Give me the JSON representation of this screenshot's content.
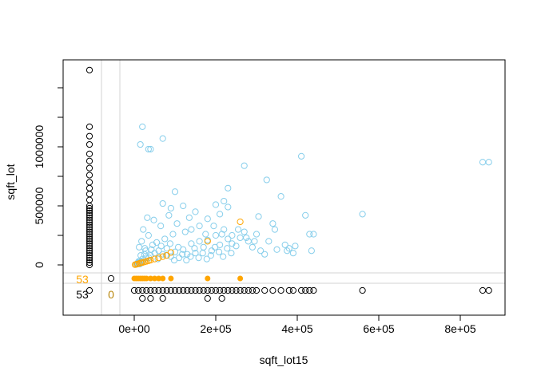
{
  "chart_data": {
    "type": "scatter",
    "title": "",
    "xlabel": "sqft_lot15",
    "ylabel": "sqft_lot",
    "xlim": [
      -220000,
      900000
    ],
    "ylim": [
      -250000,
      1750000
    ],
    "x_ticks": [
      0,
      200000,
      400000,
      600000,
      800000
    ],
    "x_tick_labels": [
      "0e+00",
      "2e+05",
      "4e+05",
      "6e+05",
      "8e+05"
    ],
    "y_ticks": [
      0,
      500000,
      1000000
    ],
    "y_tick_labels": [
      "0",
      "500000",
      "1000000"
    ],
    "grid": false,
    "missing_counts": {
      "x_missing_label": "53",
      "y_missing_label": "53",
      "both_missing_label": "0"
    },
    "colors": {
      "observed": "#87CEEB",
      "imputed": "#FFA500",
      "missing_margin": "#000000",
      "box_missing_count": "#B8860B"
    },
    "series": [
      {
        "role": "observed",
        "points": [
          [
            10000,
            20000
          ],
          [
            15000,
            35000
          ],
          [
            20000,
            50000
          ],
          [
            8000,
            15000
          ],
          [
            30000,
            60000
          ],
          [
            25000,
            90000
          ],
          [
            40000,
            80000
          ],
          [
            50000,
            100000
          ],
          [
            12000,
            150000
          ],
          [
            18000,
            200000
          ],
          [
            35000,
            250000
          ],
          [
            60000,
            120000
          ],
          [
            70000,
            90000
          ],
          [
            80000,
            140000
          ],
          [
            90000,
            70000
          ],
          [
            100000,
            110000
          ],
          [
            110000,
            60000
          ],
          [
            120000,
            130000
          ],
          [
            130000,
            90000
          ],
          [
            140000,
            180000
          ],
          [
            150000,
            100000
          ],
          [
            160000,
            200000
          ],
          [
            170000,
            150000
          ],
          [
            180000,
            210000
          ],
          [
            190000,
            120000
          ],
          [
            200000,
            250000
          ],
          [
            210000,
            170000
          ],
          [
            220000,
            300000
          ],
          [
            230000,
            220000
          ],
          [
            240000,
            180000
          ],
          [
            250000,
            160000
          ],
          [
            260000,
            230000
          ],
          [
            270000,
            280000
          ],
          [
            280000,
            200000
          ],
          [
            290000,
            150000
          ],
          [
            300000,
            260000
          ],
          [
            310000,
            120000
          ],
          [
            320000,
            90000
          ],
          [
            330000,
            200000
          ],
          [
            340000,
            350000
          ],
          [
            350000,
            130000
          ],
          [
            360000,
            580000
          ],
          [
            370000,
            170000
          ],
          [
            380000,
            140000
          ],
          [
            390000,
            100000
          ],
          [
            410000,
            920000
          ],
          [
            420000,
            420000
          ],
          [
            430000,
            260000
          ],
          [
            435000,
            120000
          ],
          [
            560000,
            430000
          ],
          [
            855000,
            870000
          ],
          [
            870000,
            870000
          ],
          [
            20000,
            1170000
          ],
          [
            15000,
            1020000
          ],
          [
            35000,
            980000
          ],
          [
            40000,
            980000
          ],
          [
            70000,
            1070000
          ],
          [
            100000,
            620000
          ],
          [
            70000,
            520000
          ],
          [
            90000,
            480000
          ],
          [
            120000,
            500000
          ],
          [
            150000,
            450000
          ],
          [
            200000,
            510000
          ],
          [
            220000,
            540000
          ],
          [
            230000,
            650000
          ],
          [
            270000,
            840000
          ],
          [
            325000,
            720000
          ],
          [
            230000,
            490000
          ],
          [
            210000,
            430000
          ],
          [
            180000,
            390000
          ],
          [
            160000,
            330000
          ],
          [
            140000,
            300000
          ],
          [
            125000,
            280000
          ],
          [
            95000,
            260000
          ],
          [
            75000,
            220000
          ],
          [
            55000,
            190000
          ],
          [
            45000,
            170000
          ],
          [
            28000,
            120000
          ],
          [
            22000,
            300000
          ],
          [
            32000,
            400000
          ],
          [
            48000,
            380000
          ],
          [
            85000,
            420000
          ],
          [
            65000,
            330000
          ],
          [
            105000,
            350000
          ],
          [
            135000,
            400000
          ],
          [
            175000,
            260000
          ],
          [
            195000,
            330000
          ],
          [
            215000,
            260000
          ],
          [
            240000,
            250000
          ],
          [
            255000,
            300000
          ],
          [
            275000,
            230000
          ],
          [
            295000,
            200000
          ],
          [
            305000,
            410000
          ],
          [
            345000,
            300000
          ],
          [
            375000,
            120000
          ],
          [
            395000,
            160000
          ],
          [
            440000,
            260000
          ],
          [
            16000,
            80000
          ],
          [
            26000,
            140000
          ],
          [
            36000,
            60000
          ],
          [
            42000,
            130000
          ],
          [
            58000,
            50000
          ],
          [
            66000,
            160000
          ],
          [
            78000,
            80000
          ],
          [
            88000,
            180000
          ],
          [
            98000,
            40000
          ],
          [
            108000,
            150000
          ],
          [
            118000,
            90000
          ],
          [
            128000,
            40000
          ],
          [
            138000,
            70000
          ],
          [
            148000,
            140000
          ],
          [
            158000,
            60000
          ],
          [
            168000,
            100000
          ],
          [
            178000,
            50000
          ],
          [
            188000,
            80000
          ],
          [
            198000,
            150000
          ],
          [
            208000,
            110000
          ],
          [
            218000,
            70000
          ],
          [
            228000,
            140000
          ],
          [
            238000,
            100000
          ],
          [
            6000,
            5000
          ],
          [
            9000,
            12000
          ],
          [
            14000,
            8000
          ],
          [
            11000,
            30000
          ],
          [
            19000,
            25000
          ]
        ]
      },
      {
        "role": "imputed",
        "points": [
          [
            2000,
            2000
          ],
          [
            5000,
            5000
          ],
          [
            8000,
            8000
          ],
          [
            12000,
            12000
          ],
          [
            16000,
            18000
          ],
          [
            20000,
            20000
          ],
          [
            25000,
            25000
          ],
          [
            30000,
            30000
          ],
          [
            35000,
            35000
          ],
          [
            40000,
            40000
          ],
          [
            50000,
            50000
          ],
          [
            60000,
            60000
          ],
          [
            70000,
            70000
          ],
          [
            80000,
            80000
          ],
          [
            90000,
            105000
          ],
          [
            180000,
            200000
          ],
          [
            260000,
            365000
          ]
        ]
      }
    ],
    "x_missing_margin": {
      "observed_y": [
        0,
        20000,
        40000,
        60000,
        80000,
        100000,
        120000,
        140000,
        160000,
        180000,
        200000,
        220000,
        240000,
        260000,
        280000,
        300000,
        320000,
        340000,
        360000,
        380000,
        400000,
        420000,
        440000,
        460000,
        480000,
        500000,
        550000,
        600000,
        650000,
        700000,
        760000,
        820000,
        880000,
        940000,
        1020000,
        1090000,
        1170000,
        1650000
      ],
      "imputed_y": []
    },
    "y_missing_margin": {
      "observed_x": [
        0,
        10000,
        20000,
        30000,
        40000,
        50000,
        60000,
        70000,
        80000,
        90000,
        100000,
        110000,
        120000,
        130000,
        140000,
        150000,
        160000,
        170000,
        180000,
        190000,
        200000,
        210000,
        220000,
        230000,
        240000,
        250000,
        260000,
        270000,
        280000,
        290000,
        300000,
        320000,
        340000,
        360000,
        380000,
        390000,
        410000,
        420000,
        430000,
        440000,
        560000,
        855000,
        870000
      ],
      "observed_x_low": [
        20000,
        40000,
        70000,
        180000,
        215000
      ],
      "imputed_x": [
        0,
        5000,
        10000,
        15000,
        20000,
        25000,
        30000,
        40000,
        50000,
        60000,
        70000,
        90000,
        180000,
        260000
      ]
    }
  }
}
